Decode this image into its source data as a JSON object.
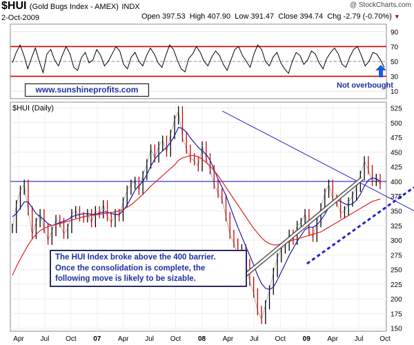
{
  "header": {
    "symbol": "$HUI",
    "name": "(Gold Bugs Index - AMEX)",
    "exchange": "INDX",
    "credit": "@ StockCharts.com",
    "date": "2-Oct-2009",
    "open_label": "Open",
    "open": "397.53",
    "high_label": "High",
    "high": "407.90",
    "low_label": "Low",
    "low": "391.47",
    "close_label": "Close",
    "close": "394.74",
    "chg_label": "Chg",
    "chg": "-2.79 (-0.70%)",
    "chg_arrow": "▼"
  },
  "annotations": {
    "website": "www.sunshineprofits.com",
    "note_overbought": "Not overbought",
    "main_note": [
      "The HUI Index broke above the 400 barrier.",
      "Once the consolidation is complete, the",
      "following move is likely to be sizable."
    ]
  },
  "colors": {
    "price_up": "#000000",
    "price_down": "#cc0000",
    "ma_short": "#1a1aa8",
    "ma_long": "#dd2222",
    "resistance": "#2222cc",
    "rsi_band": "#dd0000",
    "note_text": "#1f2fa0",
    "arrow": "#1a5be0"
  },
  "chart_data": [
    {
      "type": "line",
      "panel": "indicator",
      "y_ticks": [
        90,
        70,
        50,
        30,
        10
      ],
      "ylim": [
        0,
        100
      ],
      "reference_lines": [
        70,
        50,
        30
      ],
      "series": [
        {
          "values": [
            48,
            62,
            72,
            58,
            40,
            55,
            68,
            50,
            35,
            60,
            66,
            52,
            44,
            58,
            70,
            60,
            42,
            38,
            55,
            62,
            48,
            52,
            66,
            58,
            44,
            50,
            60,
            70,
            64,
            46,
            40,
            56,
            62,
            50,
            44,
            58,
            68,
            60,
            48,
            42,
            58,
            72,
            66,
            52,
            40,
            36,
            54,
            60,
            70,
            62,
            50,
            44,
            56,
            64,
            58,
            46,
            38,
            52,
            66,
            70,
            58,
            50,
            42,
            60,
            72,
            66,
            50,
            44,
            56,
            62,
            48,
            40,
            34,
            50,
            62,
            58,
            46,
            52,
            64,
            60,
            48,
            40,
            54,
            62,
            68,
            60,
            46,
            42,
            56,
            66,
            70,
            58,
            44,
            50,
            62,
            60,
            52,
            42
          ]
        }
      ]
    },
    {
      "type": "line",
      "panel": "price",
      "title": "$HUI (Daily)",
      "x_tick_labels": [
        "Apr",
        "Jul",
        "Oct",
        "07",
        "Apr",
        "Jul",
        "Oct",
        "08",
        "Apr",
        "Jul",
        "Oct",
        "09",
        "Apr",
        "Jul",
        "Oct"
      ],
      "y_ticks": [
        525,
        500,
        475,
        450,
        425,
        400,
        375,
        350,
        325,
        300,
        275,
        250,
        225,
        200,
        175,
        150
      ],
      "ylim": [
        145,
        535
      ],
      "horizontal_line": 400,
      "series": [
        {
          "name": "price",
          "values": [
            320,
            360,
            385,
            395,
            350,
            310,
            330,
            345,
            320,
            300,
            315,
            335,
            330,
            310,
            320,
            345,
            350,
            340,
            338,
            345,
            330,
            350,
            345,
            360,
            340,
            330,
            345,
            340,
            365,
            385,
            395,
            400,
            385,
            410,
            430,
            455,
            440,
            460,
            470,
            450,
            480,
            505,
            520,
            475,
            455,
            440,
            435,
            425,
            460,
            440,
            420,
            395,
            380,
            370,
            340,
            310,
            295,
            275,
            285,
            260,
            230,
            210,
            180,
            165,
            190,
            215,
            245,
            270,
            285,
            290,
            310,
            300,
            325,
            330,
            345,
            315,
            305,
            330,
            355,
            380,
            395,
            370,
            365,
            345,
            350,
            365,
            375,
            390,
            410,
            435,
            420,
            400,
            405,
            395
          ]
        },
        {
          "name": "short_ma",
          "values": [
            340,
            345,
            355,
            365,
            365,
            355,
            345,
            340,
            335,
            328,
            325,
            327,
            330,
            332,
            335,
            340,
            342,
            344,
            345,
            345,
            344,
            344,
            346,
            348,
            348,
            345,
            344,
            344,
            350,
            360,
            372,
            385,
            393,
            400,
            412,
            426,
            438,
            446,
            452,
            458,
            466,
            478,
            492,
            490,
            484,
            474,
            466,
            458,
            452,
            446,
            436,
            420,
            404,
            390,
            376,
            358,
            340,
            322,
            306,
            290,
            274,
            258,
            240,
            226,
            218,
            216,
            220,
            232,
            246,
            260,
            274,
            286,
            298,
            308,
            318,
            322,
            322,
            326,
            334,
            344,
            356,
            364,
            368,
            366,
            362,
            360,
            362,
            368,
            378,
            392,
            402,
            406,
            405,
            400
          ]
        },
        {
          "name": "long_ma",
          "values": [
            240,
            255,
            268,
            280,
            292,
            302,
            310,
            316,
            320,
            323,
            325,
            327,
            328,
            330,
            332,
            334,
            336,
            338,
            340,
            341,
            342,
            343,
            344,
            345,
            346,
            347,
            348,
            350,
            352,
            356,
            360,
            366,
            372,
            378,
            385,
            392,
            398,
            404,
            410,
            416,
            422,
            428,
            436,
            440,
            442,
            444,
            444,
            442,
            438,
            432,
            426,
            418,
            410,
            400,
            390,
            380,
            370,
            360,
            350,
            340,
            330,
            320,
            312,
            304,
            298,
            294,
            292,
            292,
            294,
            296,
            298,
            300,
            302,
            304,
            306,
            308,
            310,
            312,
            314,
            318,
            322,
            326,
            330,
            334,
            338,
            342,
            346,
            350,
            354,
            358,
            362,
            366,
            368,
            370
          ]
        }
      ]
    }
  ]
}
